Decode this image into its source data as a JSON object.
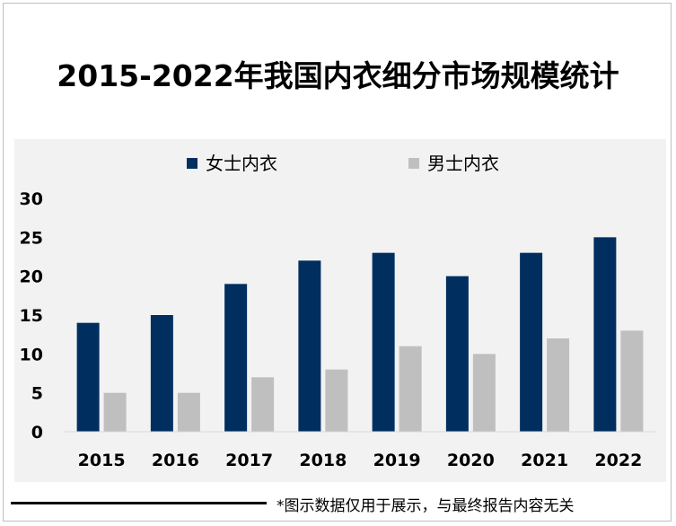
{
  "chart_data": {
    "type": "bar",
    "title": "2015-2022年我国内衣细分市场规模统计",
    "categories": [
      "2015",
      "2016",
      "2017",
      "2018",
      "2019",
      "2020",
      "2021",
      "2022"
    ],
    "series": [
      {
        "name": "女士内衣",
        "color": "#002f5f",
        "values": [
          14,
          15,
          19,
          22,
          23,
          20,
          23,
          25
        ]
      },
      {
        "name": "男士内衣",
        "color": "#bfbfbf",
        "values": [
          5,
          5,
          7,
          8,
          11,
          10,
          12,
          13
        ]
      }
    ],
    "yticks": [
      "0",
      "5",
      "10",
      "15",
      "20",
      "25",
      "30"
    ],
    "ylim": [
      0,
      30
    ],
    "grid": false,
    "legend": "top-center"
  },
  "footer": {
    "note": "*图示数据仅用于展示，与最终报告内容无关"
  }
}
